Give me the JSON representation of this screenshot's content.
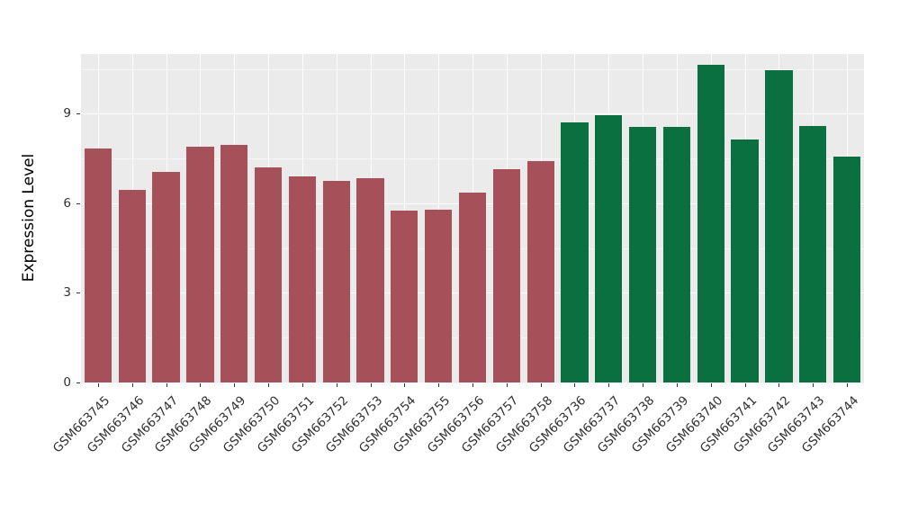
{
  "chart_data": {
    "type": "bar",
    "title": "",
    "xlabel": "",
    "ylabel": "Expression Level",
    "ylim": [
      0,
      11
    ],
    "yticks_major": [
      0,
      3,
      6,
      9
    ],
    "yticks_minor": [
      1.5,
      4.5,
      7.5,
      10.5
    ],
    "grid": "on",
    "legend": "none",
    "panel_background": "#EBEBEB",
    "gridline_color": "#FFFFFF",
    "group_colors": [
      "#A65059",
      "#0A7040"
    ],
    "categories": [
      "GSM663745",
      "GSM663746",
      "GSM663747",
      "GSM663748",
      "GSM663749",
      "GSM663750",
      "GSM663751",
      "GSM663752",
      "GSM663753",
      "GSM663754",
      "GSM663755",
      "GSM663756",
      "GSM663757",
      "GSM663758",
      "GSM663736",
      "GSM663737",
      "GSM663738",
      "GSM663739",
      "GSM663740",
      "GSM663741",
      "GSM663742",
      "GSM663743",
      "GSM663744"
    ],
    "values": [
      7.85,
      6.45,
      7.05,
      7.9,
      7.95,
      7.2,
      6.9,
      6.75,
      6.85,
      5.75,
      5.8,
      6.35,
      7.15,
      7.4,
      8.7,
      8.95,
      8.55,
      8.55,
      10.65,
      8.15,
      10.45,
      8.6,
      7.55
    ],
    "bar_groups": [
      0,
      0,
      0,
      0,
      0,
      0,
      0,
      0,
      0,
      0,
      0,
      0,
      0,
      0,
      1,
      1,
      1,
      1,
      1,
      1,
      1,
      1,
      1
    ]
  }
}
